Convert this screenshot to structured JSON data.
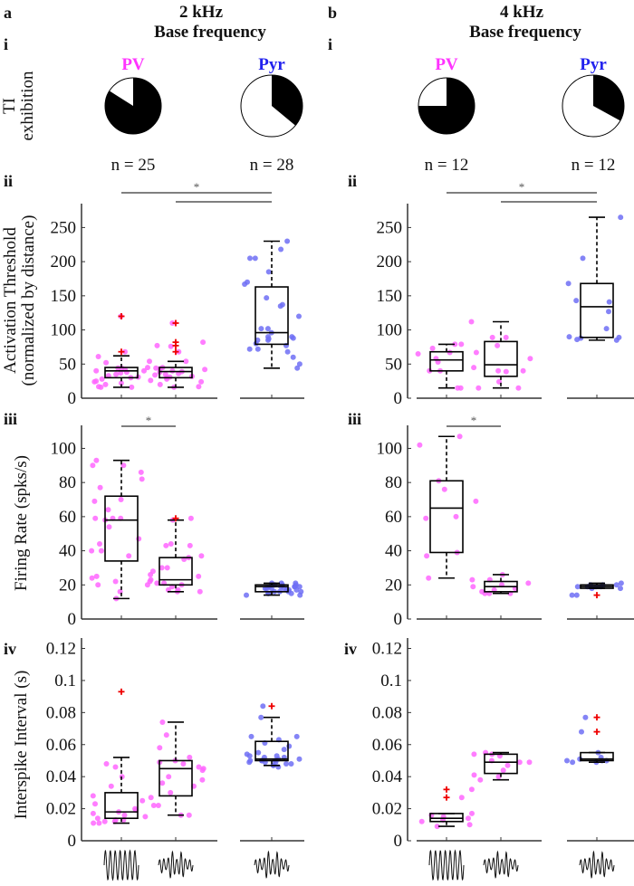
{
  "panels": [
    {
      "letter": "a",
      "title1": "2 kHz",
      "title2": "Base frequency"
    },
    {
      "letter": "b",
      "title1": "4 kHz",
      "title2": "Base frequency"
    }
  ],
  "row_labels": [
    "i",
    "ii",
    "iii",
    "iv"
  ],
  "pie_ylabel": [
    "TI",
    "exhibition"
  ],
  "colors": {
    "pv": "#ff33ff",
    "pyr": "#2222ee",
    "pv_dot": "#ff66ff",
    "pyr_dot": "#6f6ff5",
    "outlier": "#ee0000"
  },
  "pies": [
    [
      {
        "label": "PV",
        "n_label": "n = 25",
        "ti_fraction": 0.84,
        "color_key": "pv"
      },
      {
        "label": "Pyr",
        "n_label": "n = 28",
        "ti_fraction": 0.36,
        "color_key": "pyr"
      }
    ],
    [
      {
        "label": "PV",
        "n_label": "n = 12",
        "ti_fraction": 0.75,
        "color_key": "pv"
      },
      {
        "label": "Pyr",
        "n_label": "n = 12",
        "ti_fraction": 0.33,
        "color_key": "pyr"
      }
    ]
  ],
  "significance_label": "*",
  "chart_data": [
    {
      "type": "box",
      "row": "ii",
      "ylabel": [
        "Activation Threshold",
        "(normalized by distance)"
      ],
      "ylim": [
        0,
        270
      ],
      "yticks": [
        0,
        50,
        100,
        150,
        200,
        250
      ],
      "ytick_labels": [
        "0",
        "50",
        "100",
        "150",
        "200",
        "250"
      ],
      "significance": [
        [
          0,
          2
        ],
        [
          1,
          2
        ]
      ],
      "panels": [
        [
          {
            "group": "PV",
            "stimulus": "sinusoid",
            "whisker_low": 16,
            "q1": 30,
            "median": 40,
            "q3": 45,
            "whisker_high": 62,
            "outliers": [
              68,
              120
            ],
            "points": [
              120,
              68,
              61,
              52,
              44,
              44,
              40,
              40,
              38,
              35,
              33,
              31,
              30,
              25,
              22,
              20,
              16,
              16,
              42,
              37,
              28,
              24,
              45,
              54,
              17
            ]
          },
          {
            "group": "PV",
            "stimulus": "TI",
            "whisker_low": 16,
            "q1": 30,
            "median": 39,
            "q3": 45,
            "whisker_high": 54,
            "outliers": [
              68,
              77,
              82,
              110
            ],
            "points": [
              110,
              82,
              77,
              76,
              68,
              54,
              45,
              44,
              42,
              40,
              38,
              36,
              35,
              34,
              32,
              30,
              28,
              26,
              24,
              20,
              17,
              16,
              43,
              39,
              31
            ]
          },
          {
            "group": "Pyr",
            "stimulus": "TI",
            "whisker_low": 44,
            "q1": 79,
            "median": 96,
            "q3": 163,
            "whisker_high": 230,
            "outliers": [],
            "points": [
              230,
              218,
              205,
              205,
              185,
              170,
              167,
              147,
              137,
              135,
              120,
              102,
              102,
              96,
              90,
              90,
              87,
              85,
              85,
              80,
              77,
              72,
              72,
              68,
              60,
              50,
              44,
              88
            ]
          }
        ],
        [
          {
            "group": "PV",
            "stimulus": "sinusoid",
            "whisker_low": 15,
            "q1": 40,
            "median": 56,
            "q3": 68,
            "whisker_high": 79,
            "outliers": [],
            "points": [
              79,
              79,
              67,
              65,
              58,
              53,
              40,
              40,
              15,
              15,
              73,
              45
            ]
          },
          {
            "group": "PV",
            "stimulus": "TI",
            "whisker_low": 15,
            "q1": 32,
            "median": 49,
            "q3": 83,
            "whisker_high": 112,
            "outliers": [],
            "points": [
              112,
              89,
              89,
              77,
              67,
              58,
              40,
              40,
              39,
              24,
              15,
              15
            ]
          },
          {
            "group": "Pyr",
            "stimulus": "TI",
            "whisker_low": 85,
            "q1": 89,
            "median": 134,
            "q3": 168,
            "whisker_high": 265,
            "outliers": [],
            "points": [
              265,
              205,
              168,
              143,
              141,
              127,
              102,
              89,
              88,
              85,
              86,
              90
            ]
          }
        ]
      ]
    },
    {
      "type": "box",
      "row": "iii",
      "ylabel": [
        "Firing Rate (spks/s)"
      ],
      "ylim": [
        0,
        110
      ],
      "yticks": [
        0,
        20,
        40,
        60,
        80,
        100
      ],
      "ytick_labels": [
        "0",
        "20",
        "40",
        "60",
        "80",
        "100"
      ],
      "significance": [
        [
          0,
          1
        ]
      ],
      "panels": [
        [
          {
            "group": "PV",
            "stimulus": "sinusoid",
            "whisker_low": 12,
            "q1": 34,
            "median": 58,
            "q3": 72,
            "whisker_high": 93,
            "outliers": [],
            "points": [
              93,
              90,
              90,
              86,
              82,
              77,
              70,
              69,
              64,
              59,
              59,
              59,
              58,
              54,
              47,
              44,
              40,
              40,
              37,
              25,
              22,
              20,
              16,
              12,
              24
            ]
          },
          {
            "group": "PV",
            "stimulus": "TI",
            "whisker_low": 16,
            "q1": 20,
            "median": 23,
            "q3": 36,
            "whisker_high": 58,
            "outliers": [
              59
            ],
            "points": [
              59,
              58,
              43,
              43,
              37,
              36,
              35,
              30,
              30,
              26,
              25,
              23,
              22,
              21,
              21,
              20,
              20,
              19,
              17,
              17,
              16,
              16,
              44,
              28
            ]
          },
          {
            "group": "Pyr",
            "stimulus": "TI",
            "whisker_low": 14,
            "q1": 16,
            "median": 19,
            "q3": 20,
            "whisker_high": 21,
            "outliers": [],
            "points": [
              21,
              21,
              20,
              20,
              20,
              19,
              19,
              19,
              18,
              18,
              18,
              17,
              17,
              16,
              16,
              16,
              15,
              15,
              14,
              14,
              20,
              19,
              18,
              17,
              16,
              21,
              15,
              19
            ]
          }
        ],
        [
          {
            "group": "PV",
            "stimulus": "sinusoid",
            "whisker_low": 24,
            "q1": 39,
            "median": 65,
            "q3": 81,
            "whisker_high": 107,
            "outliers": [],
            "points": [
              107,
              102,
              81,
              76,
              69,
              60,
              59,
              39,
              37,
              24
            ]
          },
          {
            "group": "PV",
            "stimulus": "TI",
            "whisker_low": 15,
            "q1": 16,
            "median": 19,
            "q3": 22,
            "whisker_high": 26,
            "outliers": [],
            "points": [
              26,
              23,
              23,
              21,
              20,
              19,
              17,
              16,
              15,
              15,
              18,
              15
            ]
          },
          {
            "group": "Pyr",
            "stimulus": "TI",
            "whisker_low": 18,
            "q1": 18,
            "median": 19,
            "q3": 20,
            "whisker_high": 21,
            "outliers": [
              14
            ],
            "points": [
              21,
              20,
              20,
              20,
              19,
              19,
              18,
              18,
              19,
              14,
              14,
              19
            ]
          }
        ]
      ]
    },
    {
      "type": "box",
      "row": "iv",
      "ylabel": [
        "Interspike Interval (s)"
      ],
      "ylim": [
        0,
        0.12
      ],
      "yticks": [
        0,
        0.02,
        0.04,
        0.06,
        0.08,
        0.1,
        0.12
      ],
      "ytick_labels": [
        "0",
        "0.02",
        "0.04",
        "0.06",
        "0.08",
        "0.1",
        "0.12"
      ],
      "significance": [],
      "panels": [
        [
          {
            "group": "PV",
            "stimulus": "sinusoid",
            "whisker_low": 0.011,
            "q1": 0.014,
            "median": 0.018,
            "q3": 0.03,
            "whisker_high": 0.052,
            "outliers": [
              0.093
            ],
            "points": [
              0.048,
              0.046,
              0.04,
              0.034,
              0.028,
              0.023,
              0.019,
              0.018,
              0.016,
              0.015,
              0.014,
              0.013,
              0.012,
              0.012,
              0.011,
              0.011,
              0.02,
              0.025,
              0.017,
              0.013
            ]
          },
          {
            "group": "PV",
            "stimulus": "TI",
            "whisker_low": 0.016,
            "q1": 0.028,
            "median": 0.045,
            "q3": 0.05,
            "whisker_high": 0.074,
            "outliers": [],
            "points": [
              0.074,
              0.066,
              0.058,
              0.052,
              0.05,
              0.049,
              0.048,
              0.046,
              0.044,
              0.04,
              0.038,
              0.034,
              0.03,
              0.027,
              0.022,
              0.022,
              0.016,
              0.016,
              0.045,
              0.036
            ]
          },
          {
            "group": "Pyr",
            "stimulus": "TI",
            "whisker_low": 0.047,
            "q1": 0.05,
            "median": 0.051,
            "q3": 0.062,
            "whisker_high": 0.077,
            "outliers": [
              0.084
            ],
            "points": [
              0.084,
              0.077,
              0.065,
              0.065,
              0.063,
              0.059,
              0.057,
              0.055,
              0.053,
              0.053,
              0.052,
              0.051,
              0.051,
              0.05,
              0.05,
              0.05,
              0.049,
              0.049,
              0.049,
              0.048,
              0.048,
              0.047,
              0.047,
              0.046,
              0.061,
              0.054,
              0.05,
              0.052
            ]
          }
        ],
        [
          {
            "group": "PV",
            "stimulus": "sinusoid",
            "whisker_low": 0.009,
            "q1": 0.012,
            "median": 0.014,
            "q3": 0.017,
            "whisker_high": 0.017,
            "outliers": [
              0.027,
              0.032
            ],
            "points": [
              0.032,
              0.027,
              0.017,
              0.015,
              0.014,
              0.013,
              0.012,
              0.01,
              0.009,
              0.016
            ]
          },
          {
            "group": "PV",
            "stimulus": "TI",
            "whisker_low": 0.038,
            "q1": 0.042,
            "median": 0.049,
            "q3": 0.054,
            "whisker_high": 0.055,
            "outliers": [],
            "points": [
              0.055,
              0.054,
              0.054,
              0.05,
              0.049,
              0.049,
              0.047,
              0.044,
              0.041,
              0.04,
              0.038,
              0.053
            ]
          },
          {
            "group": "Pyr",
            "stimulus": "TI",
            "whisker_low": 0.049,
            "q1": 0.05,
            "median": 0.051,
            "q3": 0.055,
            "whisker_high": 0.055,
            "outliers": [
              0.068,
              0.077
            ],
            "points": [
              0.077,
              0.068,
              0.055,
              0.052,
              0.051,
              0.05,
              0.05,
              0.049,
              0.049,
              0.05
            ]
          }
        ]
      ]
    }
  ]
}
